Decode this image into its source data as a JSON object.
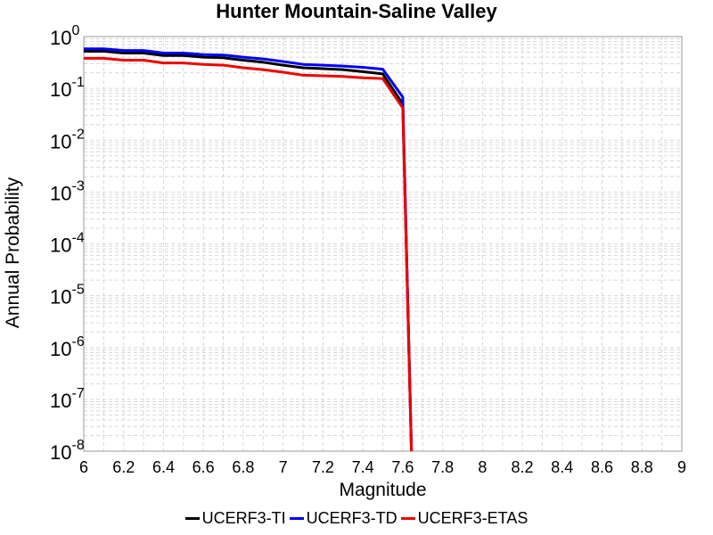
{
  "chart_data": {
    "type": "line",
    "title": "Hunter Mountain-Saline Valley",
    "xlabel": "Magnitude",
    "ylabel": "Annual Probability",
    "xlim": [
      6,
      9
    ],
    "ylim": [
      1e-08,
      1
    ],
    "yscale": "log",
    "grid": true,
    "legend_position": "bottom",
    "x_ticks": [
      "6",
      "6.2",
      "6.4",
      "6.6",
      "6.8",
      "7",
      "7.2",
      "7.4",
      "7.6",
      "7.8",
      "8",
      "8.2",
      "8.4",
      "8.6",
      "8.8",
      "9"
    ],
    "y_tick_exponents": [
      "0",
      "-1",
      "-2",
      "-3",
      "-4",
      "-5",
      "-6",
      "-7",
      "-8"
    ],
    "y_tick_base": "10",
    "series": [
      {
        "name": "UCERF3-TI",
        "color": "#000000",
        "x": [
          6.0,
          6.1,
          6.2,
          6.3,
          6.4,
          6.5,
          6.6,
          6.7,
          6.8,
          6.9,
          7.0,
          7.1,
          7.2,
          7.3,
          7.4,
          7.5,
          7.6,
          7.65
        ],
        "y": [
          0.52,
          0.52,
          0.48,
          0.48,
          0.43,
          0.43,
          0.4,
          0.39,
          0.35,
          0.32,
          0.28,
          0.25,
          0.24,
          0.23,
          0.21,
          0.19,
          0.05,
          1e-09
        ]
      },
      {
        "name": "UCERF3-TD",
        "color": "#0000ff",
        "x": [
          6.0,
          6.1,
          6.2,
          6.3,
          6.4,
          6.5,
          6.6,
          6.7,
          6.8,
          6.9,
          7.0,
          7.1,
          7.2,
          7.3,
          7.4,
          7.5,
          7.6,
          7.65
        ],
        "y": [
          0.58,
          0.58,
          0.54,
          0.54,
          0.48,
          0.48,
          0.45,
          0.44,
          0.4,
          0.37,
          0.33,
          0.29,
          0.28,
          0.27,
          0.255,
          0.235,
          0.068,
          1e-09
        ]
      },
      {
        "name": "UCERF3-ETAS",
        "color": "#ee0000",
        "x": [
          6.0,
          6.1,
          6.2,
          6.3,
          6.4,
          6.5,
          6.6,
          6.7,
          6.8,
          6.9,
          7.0,
          7.1,
          7.2,
          7.3,
          7.4,
          7.5,
          7.6,
          7.65
        ],
        "y": [
          0.38,
          0.38,
          0.35,
          0.35,
          0.31,
          0.31,
          0.29,
          0.28,
          0.25,
          0.23,
          0.205,
          0.18,
          0.175,
          0.17,
          0.16,
          0.155,
          0.042,
          1e-09
        ]
      }
    ]
  }
}
